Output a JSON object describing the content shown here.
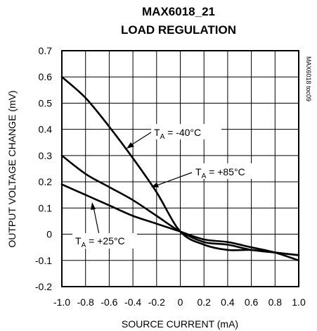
{
  "chart_data": {
    "type": "line",
    "title": "MAX6018_21",
    "subtitle": "LOAD REGULATION",
    "xlabel": "SOURCE CURRENT (mA)",
    "ylabel": "OUTPUT VOLTAGE CHANGE (mV)",
    "side_tag": "MAX6018 toc09",
    "xlim": [
      -1.0,
      1.0
    ],
    "ylim": [
      -0.2,
      0.7
    ],
    "grid": true,
    "x_ticks": [
      "-1.0",
      "-0.8",
      "-0.6",
      "-0.4",
      "-0.2",
      "0",
      "0.2",
      "0.4",
      "0.6",
      "0.8",
      "1.0"
    ],
    "y_ticks": [
      "0.7",
      "0.6",
      "0.5",
      "0.4",
      "0.3",
      "0.2",
      "0.1",
      "0",
      "-0.1",
      "-0.2"
    ],
    "series": [
      {
        "label_main": "T",
        "label_sub": "A",
        "label_rest": " = -40°C",
        "x": [
          -1.0,
          -0.8,
          -0.6,
          -0.4,
          -0.2,
          0.0,
          0.2,
          0.4,
          0.6,
          0.8,
          1.0
        ],
        "y": [
          0.6,
          0.52,
          0.41,
          0.29,
          0.16,
          0.01,
          -0.04,
          -0.06,
          -0.06,
          -0.07,
          -0.08
        ]
      },
      {
        "label_main": "T",
        "label_sub": "A",
        "label_rest": " = +85°C",
        "x": [
          -1.0,
          -0.8,
          -0.6,
          -0.4,
          -0.2,
          0.0,
          0.2,
          0.4,
          0.6,
          0.8,
          1.0
        ],
        "y": [
          0.3,
          0.23,
          0.18,
          0.13,
          0.07,
          0.01,
          -0.03,
          -0.04,
          -0.06,
          -0.07,
          -0.08
        ]
      },
      {
        "label_main": "T",
        "label_sub": "A",
        "label_rest": " = +25°C",
        "x": [
          -1.0,
          -0.8,
          -0.6,
          -0.4,
          -0.2,
          0.0,
          0.2,
          0.4,
          0.6,
          0.8,
          1.0
        ],
        "y": [
          0.19,
          0.15,
          0.11,
          0.07,
          0.04,
          0.01,
          -0.02,
          -0.03,
          -0.05,
          -0.07,
          -0.1
        ]
      }
    ]
  }
}
